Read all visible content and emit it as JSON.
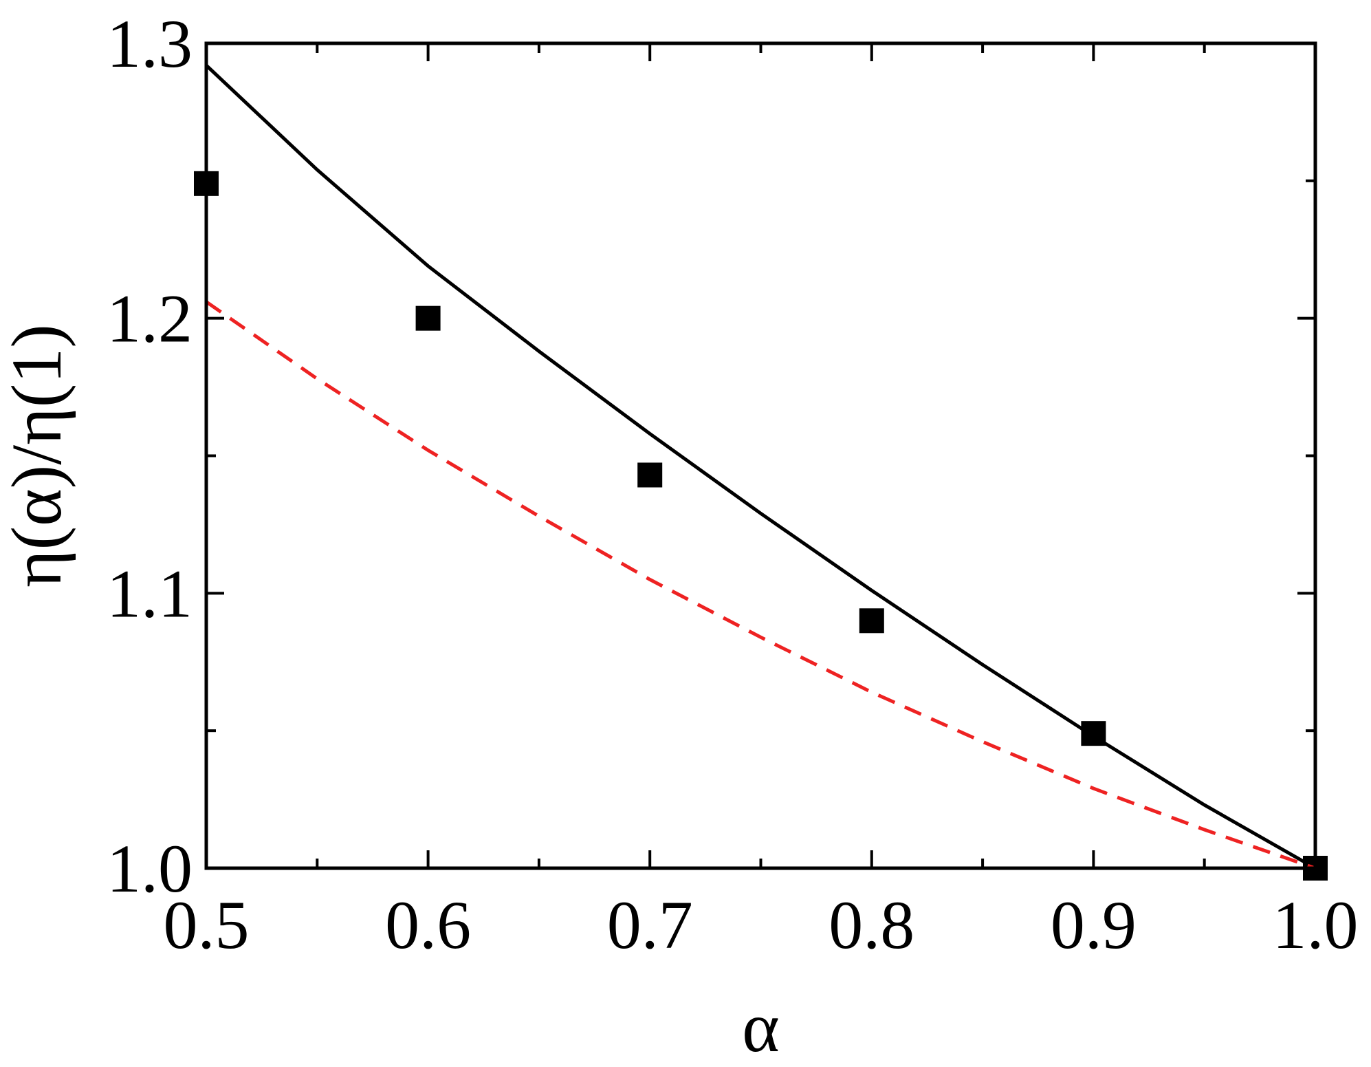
{
  "chart_data": {
    "type": "scatter",
    "title": "",
    "xlabel": "α",
    "ylabel": "η(α)/η(1)",
    "xlim": [
      0.5,
      1.0
    ],
    "ylim": [
      1.0,
      1.3
    ],
    "x_ticks": [
      0.5,
      0.6,
      0.7,
      0.8,
      0.9,
      1.0
    ],
    "x_tick_labels": [
      "0.5",
      "0.6",
      "0.7",
      "0.8",
      "0.9",
      "1.0"
    ],
    "x_minor_ticks": [
      0.55,
      0.65,
      0.75,
      0.85,
      0.95
    ],
    "y_ticks": [
      1.0,
      1.1,
      1.2,
      1.3
    ],
    "y_tick_labels": [
      "1.0",
      "1.1",
      "1.2",
      "1.3"
    ],
    "y_minor_ticks": [
      1.05,
      1.15,
      1.25
    ],
    "grid": false,
    "legend": "none",
    "series": [
      {
        "kind": "markers",
        "marker": "filled-square",
        "color": "#000000",
        "x": [
          0.5,
          0.6,
          0.7,
          0.8,
          0.9,
          1.0
        ],
        "y": [
          1.249,
          1.2,
          1.143,
          1.09,
          1.049,
          1.0
        ]
      },
      {
        "kind": "line",
        "style": "solid",
        "color": "#000000",
        "x": [
          0.5,
          0.55,
          0.6,
          0.65,
          0.7,
          0.75,
          0.8,
          0.85,
          0.9,
          0.95,
          1.0
        ],
        "y": [
          1.292,
          1.254,
          1.219,
          1.188,
          1.158,
          1.129,
          1.101,
          1.074,
          1.048,
          1.023,
          1.0
        ]
      },
      {
        "kind": "line",
        "style": "dashed",
        "color": "#ee2222",
        "x": [
          0.5,
          0.55,
          0.6,
          0.65,
          0.7,
          0.75,
          0.8,
          0.85,
          0.9,
          0.95,
          1.0
        ],
        "y": [
          1.206,
          1.178,
          1.152,
          1.128,
          1.105,
          1.084,
          1.064,
          1.046,
          1.029,
          1.014,
          1.0
        ]
      }
    ]
  }
}
